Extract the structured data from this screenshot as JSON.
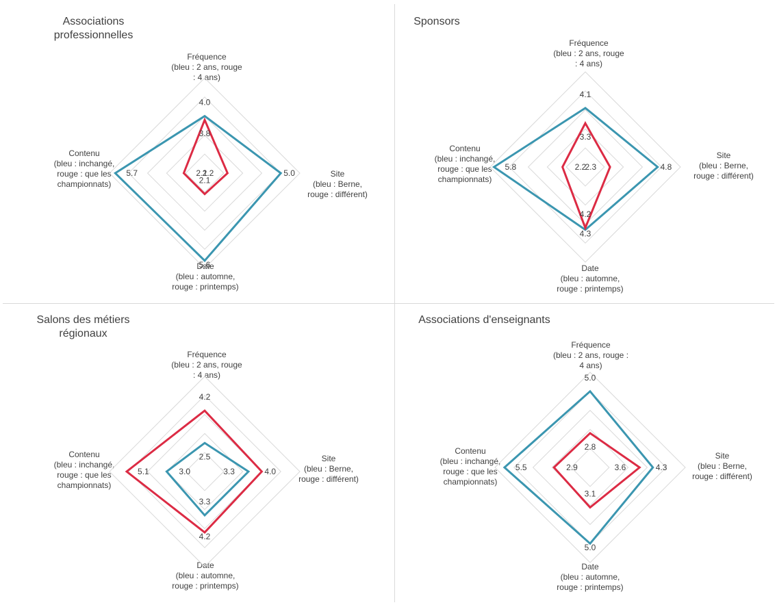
{
  "chart_data": [
    {
      "type": "radar",
      "title": "Associations\nprofessionnelles",
      "axes": [
        "Fréquence\n(bleu : 2 ans, rouge\n: 4 ans)",
        "Site\n(bleu : Berne,\nrouge : différent)",
        "Date\n(bleu : automne,\nrouge : printemps)",
        "Contenu\n(bleu : inchangé,\nrouge : que les\nchampionnats)"
      ],
      "series": [
        {
          "color": "#3b96b0",
          "values": [
            4.0,
            5.0,
            5.6,
            5.7
          ]
        },
        {
          "color": "#dc2b44",
          "values": [
            3.8,
            2.2,
            2.1,
            2.1
          ]
        }
      ],
      "range": [
        1,
        6
      ],
      "grid": true
    },
    {
      "type": "radar",
      "title": "Sponsors",
      "axes": [
        "Fréquence\n(bleu : 2 ans, rouge\n: 4 ans)",
        "Site\n(bleu : Berne,\nrouge : différent)",
        "Date\n(bleu : automne,\nrouge : printemps)",
        "Contenu\n(bleu : inchangé,\nrouge : que les\nchampionnats)"
      ],
      "series": [
        {
          "color": "#3b96b0",
          "values": [
            4.1,
            4.8,
            4.3,
            5.8
          ]
        },
        {
          "color": "#dc2b44",
          "values": [
            3.3,
            2.3,
            4.2,
            2.2
          ]
        }
      ],
      "range": [
        1,
        6
      ],
      "grid": true
    },
    {
      "type": "radar",
      "title": "Salons des métiers\nrégionaux",
      "axes": [
        "Fréquence\n(bleu : 2 ans, rouge\n: 4 ans)",
        "Site\n(bleu : Berne,\nrouge : différent)",
        "Date\n(bleu : automne,\nrouge : printemps)",
        "Contenu\n(bleu : inchangé,\nrouge : que les\nchampionnats)"
      ],
      "series": [
        {
          "color": "#3b96b0",
          "values": [
            2.5,
            3.3,
            3.3,
            3.0
          ]
        },
        {
          "color": "#dc2b44",
          "values": [
            4.2,
            4.0,
            4.2,
            5.1
          ]
        }
      ],
      "range": [
        1,
        6
      ],
      "grid": true
    },
    {
      "type": "radar",
      "title": "Associations d'enseignants",
      "axes": [
        "Fréquence\n(bleu : 2 ans, rouge :\n4 ans)",
        "Site\n(bleu : Berne,\nrouge : différent)",
        "Date\n(bleu : automne,\nrouge : printemps)",
        "Contenu\n(bleu : inchangé,\nrouge : que les\nchampionnats)"
      ],
      "series": [
        {
          "color": "#3b96b0",
          "values": [
            5.0,
            4.3,
            5.0,
            5.5
          ]
        },
        {
          "color": "#dc2b44",
          "values": [
            2.8,
            3.6,
            3.1,
            2.9
          ]
        }
      ],
      "range": [
        1,
        6
      ],
      "grid": true
    }
  ]
}
